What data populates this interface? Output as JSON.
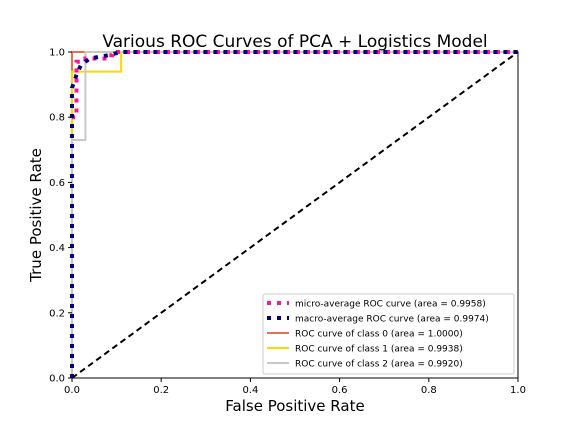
{
  "chart_data": {
    "type": "line",
    "title": "Various ROC Curves of PCA + Logistics Model",
    "xlabel": "False Positive Rate",
    "ylabel": "True Positive Rate",
    "xlim": [
      0.0,
      1.0
    ],
    "ylim": [
      0.0,
      1.0
    ],
    "xticks": [
      "0.0",
      "0.2",
      "0.4",
      "0.6",
      "0.8",
      "1.0"
    ],
    "yticks": [
      "0.0",
      "0.2",
      "0.4",
      "0.6",
      "0.8",
      "1.0"
    ],
    "grid": false,
    "legend_position": "lower right",
    "series": [
      {
        "name": "micro-average ROC curve (area = 0.9958)",
        "color": "#ff1493",
        "style": "dotted",
        "points": [
          [
            0.0,
            0.0
          ],
          [
            0.0,
            0.73
          ],
          [
            0.0,
            0.8
          ],
          [
            0.01,
            0.8
          ],
          [
            0.01,
            0.97
          ],
          [
            0.03,
            0.97
          ],
          [
            0.03,
            0.98
          ],
          [
            0.08,
            0.98
          ],
          [
            0.08,
            0.99
          ],
          [
            0.09,
            0.99
          ],
          [
            0.09,
            1.0
          ],
          [
            1.0,
            1.0
          ]
        ]
      },
      {
        "name": "macro-average ROC curve (area = 0.9974)",
        "color": "#000080",
        "style": "dotted",
        "points": [
          [
            0.0,
            0.0
          ],
          [
            0.0,
            0.89
          ],
          [
            0.01,
            0.93
          ],
          [
            0.02,
            0.96
          ],
          [
            0.04,
            0.98
          ],
          [
            0.08,
            0.99
          ],
          [
            0.11,
            1.0
          ],
          [
            1.0,
            1.0
          ]
        ]
      },
      {
        "name": "ROC curve of class 0 (area = 1.0000)",
        "color": "#e8704f",
        "style": "solid",
        "points": [
          [
            0.0,
            0.0
          ],
          [
            0.0,
            1.0
          ],
          [
            1.0,
            1.0
          ]
        ]
      },
      {
        "name": "ROC curve of class 1 (area = 0.9938)",
        "color": "#ffd700",
        "style": "solid",
        "points": [
          [
            0.0,
            0.0
          ],
          [
            0.0,
            0.94
          ],
          [
            0.11,
            0.94
          ],
          [
            0.11,
            1.0
          ],
          [
            1.0,
            1.0
          ]
        ]
      },
      {
        "name": "ROC curve of class 2 (area = 0.9920)",
        "color": "#c8c8c8",
        "style": "solid",
        "points": [
          [
            0.0,
            0.0
          ],
          [
            0.0,
            0.73
          ],
          [
            0.03,
            0.73
          ],
          [
            0.03,
            1.0
          ],
          [
            1.0,
            1.0
          ]
        ]
      }
    ],
    "reference_line": {
      "color": "#000000",
      "style": "dashed",
      "points": [
        [
          0.0,
          0.0
        ],
        [
          1.0,
          1.0
        ]
      ]
    }
  }
}
